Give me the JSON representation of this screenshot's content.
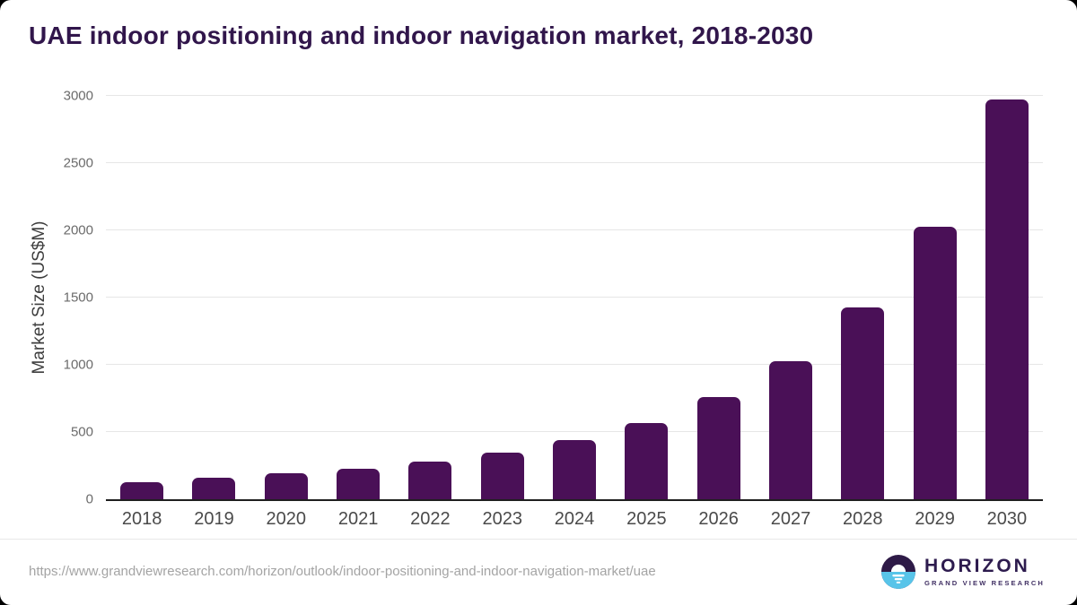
{
  "page": {
    "background": "#000000",
    "card_background": "#ffffff"
  },
  "header": {
    "title": "UAE indoor positioning and indoor navigation market, 2018-2030",
    "title_color": "#31164b"
  },
  "chart_data": {
    "type": "bar",
    "title": "UAE indoor positioning and indoor navigation market, 2018-2030",
    "categories": [
      "2018",
      "2019",
      "2020",
      "2021",
      "2022",
      "2023",
      "2024",
      "2025",
      "2026",
      "2027",
      "2028",
      "2029",
      "2030"
    ],
    "values": [
      130,
      163,
      192,
      230,
      280,
      345,
      440,
      570,
      758,
      1025,
      1425,
      2030,
      2975
    ],
    "xlabel": "",
    "ylabel": "Market Size (US$M)",
    "ylim": [
      0,
      3000
    ],
    "yticks": [
      0,
      500,
      1000,
      1500,
      2000,
      2500,
      3000
    ],
    "grid": "horizontal",
    "legend": "none",
    "bar_color": "#4a1057",
    "gridline_color": "#e6e6e6",
    "axis_line_color": "#1f1f1f"
  },
  "footer": {
    "source_url": "https://www.grandviewresearch.com/horizon/outlook/indoor-positioning-and-indoor-navigation-market/uae",
    "logo": {
      "icon": "horizon-sun-logo",
      "brand": "HORIZON",
      "sub_brand": "GRAND VIEW RESEARCH",
      "navy": "#2e1a47",
      "blue": "#58c4e9"
    }
  }
}
